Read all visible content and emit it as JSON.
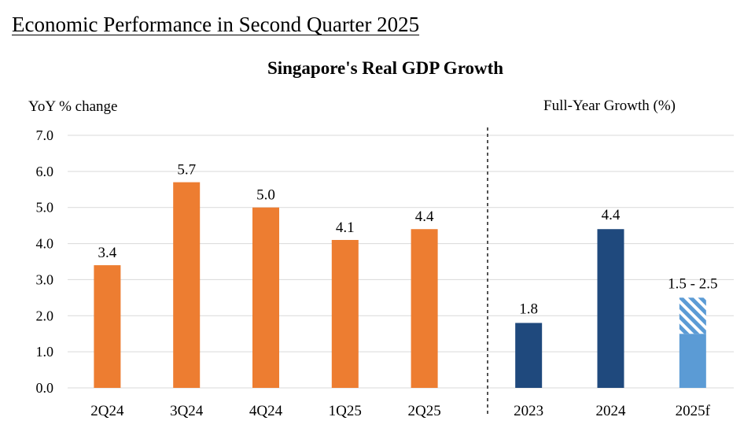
{
  "page": {
    "heading": "Economic Performance in Second Quarter 2025"
  },
  "chart_data": {
    "type": "bar",
    "title": "Singapore's Real GDP Growth",
    "ylabel": "YoY % change",
    "ylim": [
      0,
      7
    ],
    "yticks": [
      "0.0",
      "1.0",
      "2.0",
      "3.0",
      "4.0",
      "5.0",
      "6.0",
      "7.0"
    ],
    "grid": true,
    "quarterly": {
      "categories": [
        "2Q24",
        "3Q24",
        "4Q24",
        "1Q25",
        "2Q25"
      ],
      "values": [
        3.4,
        5.7,
        5.0,
        4.1,
        4.4
      ],
      "labels": [
        "3.4",
        "5.7",
        "5.0",
        "4.1",
        "4.4"
      ],
      "color": "#ED7D31"
    },
    "annual": {
      "section_title": "Full-Year Growth (%)",
      "categories": [
        "2023",
        "2024",
        "2025f"
      ],
      "values": [
        1.8,
        4.4,
        null
      ],
      "labels": [
        "1.8",
        "4.4",
        "1.5 - 2.5"
      ],
      "forecast_range": [
        1.5,
        2.5
      ],
      "color": "#1F497D",
      "forecast_color": "#5B9BD5"
    }
  }
}
